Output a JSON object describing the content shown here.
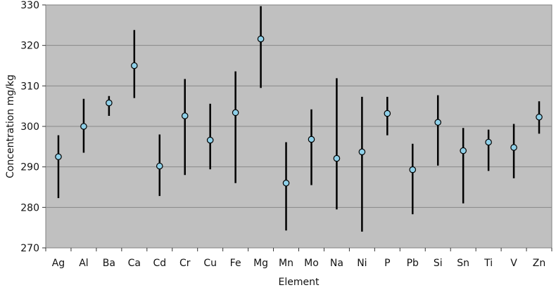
{
  "chart_data": {
    "type": "scatter",
    "title": "",
    "xlabel": "Element",
    "ylabel": "Concentration mg/kg",
    "ylim": [
      270,
      330
    ],
    "yticks": [
      270,
      280,
      290,
      300,
      310,
      320,
      330
    ],
    "grid": true,
    "legend": "none",
    "colors": {
      "plot_background": "#c0c0c0",
      "gridline": "#888888",
      "point_fill": "#8fd0e8",
      "point_stroke": "#000000",
      "error_bar": "#000000"
    },
    "categories": [
      "Ag",
      "Al",
      "Ba",
      "Ca",
      "Cd",
      "Cr",
      "Cu",
      "Fe",
      "Mg",
      "Mn",
      "Mo",
      "Na",
      "Ni",
      "P",
      "Pb",
      "Si",
      "Sn",
      "Ti",
      "V",
      "Zn"
    ],
    "series": [
      {
        "values": [
          292.5,
          300.0,
          305.8,
          315.0,
          290.2,
          302.6,
          296.6,
          303.4,
          321.6,
          286.0,
          296.8,
          292.1,
          293.7,
          303.2,
          289.3,
          301.0,
          294.0,
          296.1,
          294.8,
          302.3
        ],
        "error_low": [
          282.3,
          293.5,
          302.6,
          307.0,
          282.8,
          288.0,
          289.4,
          286.0,
          309.5,
          274.3,
          285.5,
          279.5,
          274.0,
          297.8,
          278.3,
          290.3,
          281.0,
          289.0,
          287.2,
          298.2
        ],
        "error_high": [
          297.8,
          306.8,
          307.5,
          323.8,
          298.0,
          311.7,
          305.6,
          313.6,
          329.7,
          296.1,
          304.2,
          311.9,
          307.3,
          307.3,
          295.7,
          307.7,
          299.6,
          299.2,
          300.6,
          306.2
        ]
      }
    ]
  }
}
